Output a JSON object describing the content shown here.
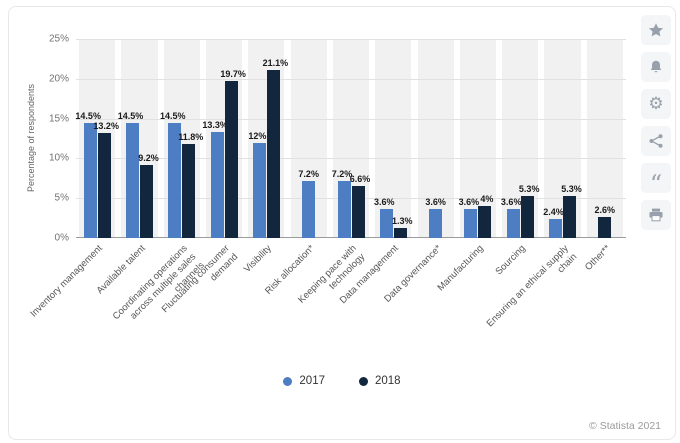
{
  "chart_data": {
    "type": "bar",
    "ylabel": "Percentage of respondents",
    "ylim": [
      0,
      25
    ],
    "ytick_labels": [
      "0%",
      "5%",
      "10%",
      "15%",
      "20%",
      "25%"
    ],
    "grid": true,
    "legend_position": "bottom",
    "categories": [
      "Inventory management",
      "Available talent",
      "Coordinating operations across multiple sales channels",
      "Fluctuating consumer demand",
      "Visibility",
      "Risk allocation*",
      "Keeping pace with technology",
      "Data management",
      "Data governance*",
      "Manufacturing",
      "Sourcing",
      "Ensuring an ethical supply chain",
      "Other**"
    ],
    "series": [
      {
        "name": "2017",
        "color": "#4d7dc2",
        "values": [
          14.5,
          14.5,
          14.5,
          13.3,
          12,
          7.2,
          7.2,
          3.6,
          3.6,
          3.6,
          3.6,
          2.4,
          null
        ]
      },
      {
        "name": "2018",
        "color": "#12263d",
        "values": [
          13.2,
          9.2,
          11.8,
          19.7,
          21.1,
          null,
          6.6,
          1.3,
          null,
          4,
          5.3,
          5.3,
          2.6
        ]
      }
    ]
  },
  "footer": {
    "copyright": "© Statista 2021"
  },
  "toolbar": {
    "buttons": [
      {
        "name": "favorite",
        "icon": "star-icon"
      },
      {
        "name": "alerts",
        "icon": "bell-icon"
      },
      {
        "name": "settings",
        "icon": "gear-icon"
      },
      {
        "name": "share",
        "icon": "share-icon"
      },
      {
        "name": "cite",
        "icon": "quote-icon"
      },
      {
        "name": "print",
        "icon": "print-icon"
      }
    ]
  }
}
